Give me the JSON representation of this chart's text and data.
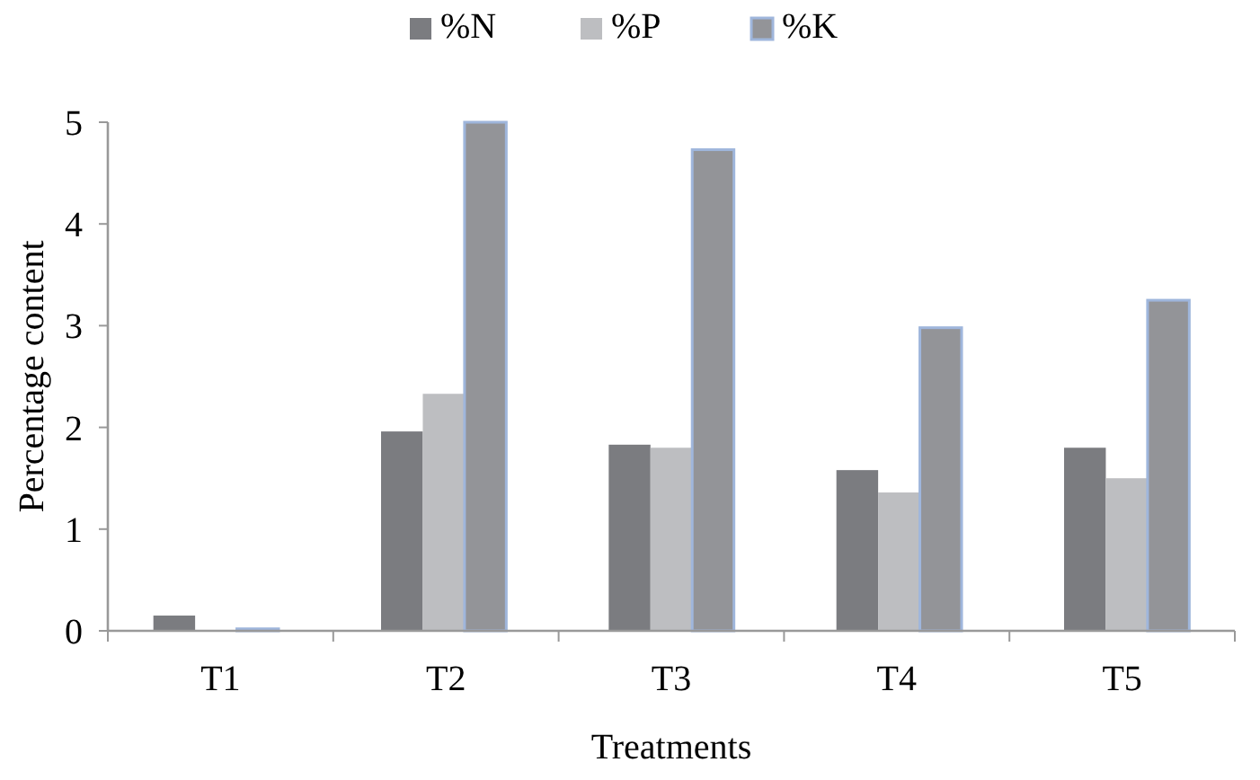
{
  "chart_data": {
    "type": "bar",
    "xlabel": "Treatments",
    "ylabel": "Percentage content",
    "categories": [
      "T1",
      "T2",
      "T3",
      "T4",
      "T5"
    ],
    "series": [
      {
        "name": "%N",
        "color": "#7b7c80",
        "values": [
          0.15,
          1.96,
          1.83,
          1.58,
          1.8
        ]
      },
      {
        "name": "%P",
        "color": "#bdbec1",
        "values": [
          0,
          2.33,
          1.8,
          1.36,
          1.5
        ]
      },
      {
        "name": "%K",
        "color": "#939498",
        "values": [
          0.02,
          5.0,
          4.73,
          2.98,
          3.25
        ]
      }
    ],
    "ylim": [
      0,
      5
    ],
    "yticks": [
      0,
      1,
      2,
      3,
      4,
      5
    ],
    "grid": false,
    "legend": "top"
  }
}
